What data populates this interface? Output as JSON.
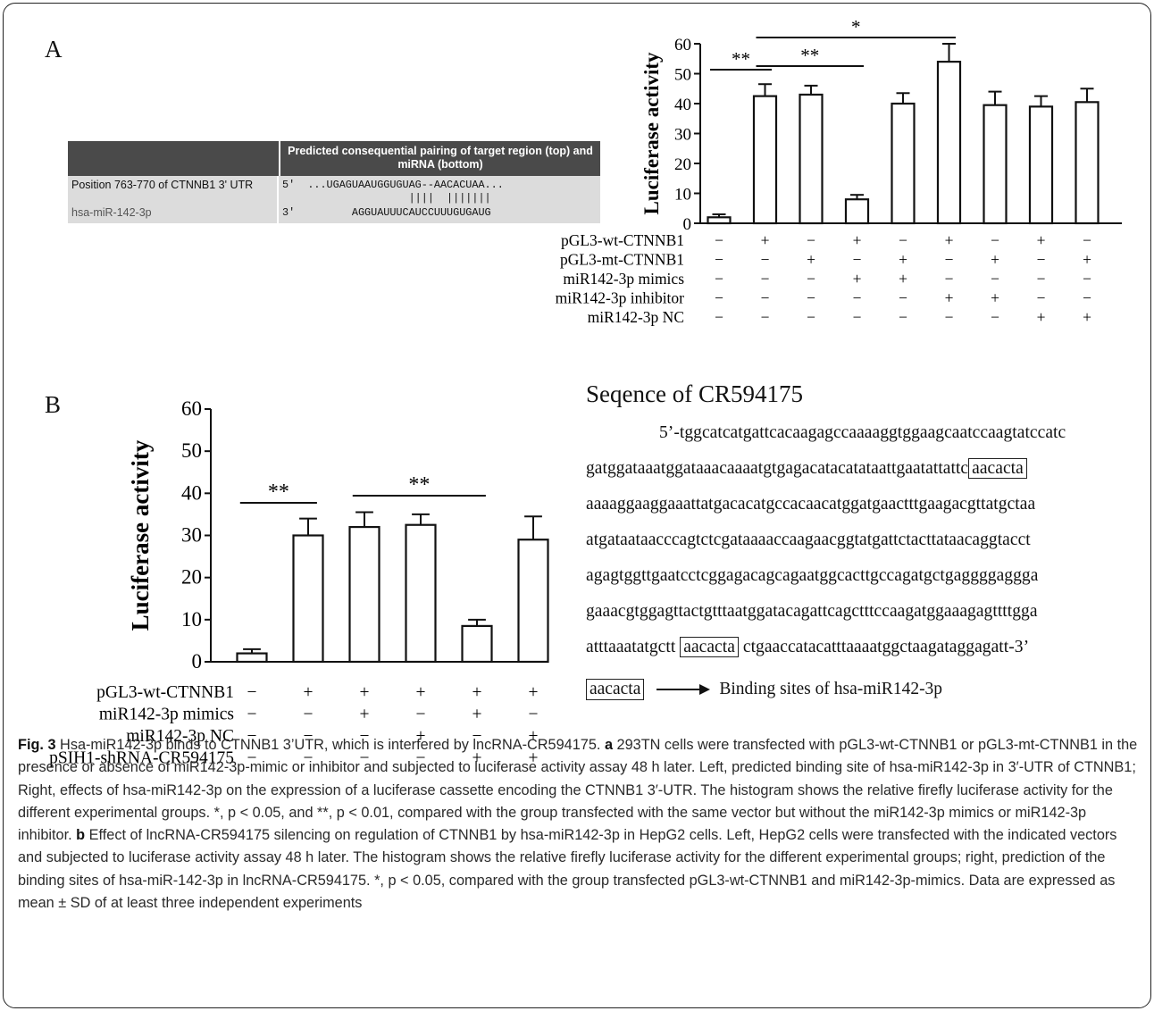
{
  "panelA": {
    "letter": "A",
    "table": {
      "header_col2": "Predicted consequential pairing of target region (top) and miRNA (bottom)",
      "rows": [
        {
          "label": "Position 763-770 of CTNNB1 3' UTR",
          "seq": "5'  ...UGAGUAAUGGUGUAG--AACACUAA..."
        },
        {
          "label": "",
          "seq": "                    ||||  |||||||"
        },
        {
          "label": "hsa-miR-142-3p",
          "seq": "3'         AGGUAUUUCAUCCUUUGUGAUG"
        }
      ]
    }
  },
  "panelB": {
    "letter": "B",
    "sequence_title": "Seqence of CR594175",
    "sequence_lines": [
      {
        "pre": "5’-tggcatcatgattcacaagagccaaaaggtggaagcaatccaagtatccatc",
        "box": "",
        "post": ""
      },
      {
        "pre": "gatggataaatggataaacaaaatgtgagacatacatataattgaatattattc",
        "box": "aacacta",
        "post": ""
      },
      {
        "pre": "aaaaggaaggaaattatgacacatgccacaacatggatgaactttgaagacgttatgctaa",
        "box": "",
        "post": ""
      },
      {
        "pre": "atgataataacccagtctcgataaaaccaagaacggtatgattctacttataacaggtacct",
        "box": "",
        "post": ""
      },
      {
        "pre": "agagtggttgaatcctcggagacagcagaatggcacttgccagatgctgaggggaggga",
        "box": "",
        "post": ""
      },
      {
        "pre": "gaaacgtggagttactgtttaatggatacagattcagctttccaagatggaaagagttttgga",
        "box": "",
        "post": ""
      },
      {
        "pre": "atttaaatatgctt ",
        "box": "aacacta",
        "post": " ctgaaccatacatttaaaatggctaagataggagatt-3’"
      }
    ],
    "legend_box": "aacacta",
    "legend_text": "Binding sites  of  hsa-miR142-3p"
  },
  "chart_data": [
    {
      "type": "bar",
      "ylabel": "Luciferase activity",
      "ylim": [
        0,
        60
      ],
      "yticks": [
        0,
        10,
        20,
        30,
        40,
        50,
        60
      ],
      "values": [
        2,
        42.5,
        43,
        8,
        40,
        54,
        39.5,
        39,
        40.5
      ],
      "errors": [
        1,
        4,
        3,
        1.5,
        3.5,
        6,
        4.5,
        3.5,
        4.5
      ],
      "conditions": [
        {
          "label": "pGL3-wt-CTNNB1",
          "signs": [
            "−",
            "+",
            "−",
            "+",
            "−",
            "+",
            "−",
            "+",
            "−"
          ]
        },
        {
          "label": "pGL3-mt-CTNNB1",
          "signs": [
            "−",
            "−",
            "+",
            "−",
            "+",
            "−",
            "+",
            "−",
            "+"
          ]
        },
        {
          "label": "miR142-3p mimics",
          "signs": [
            "−",
            "−",
            "−",
            "+",
            "+",
            "−",
            "−",
            "−",
            "−"
          ]
        },
        {
          "label": "miR142-3p inhibitor",
          "signs": [
            "−",
            "−",
            "−",
            "−",
            "−",
            "+",
            "+",
            "−",
            "−"
          ]
        },
        {
          "label": "miR142-3p NC",
          "signs": [
            "−",
            "−",
            "−",
            "−",
            "−",
            "−",
            "−",
            "+",
            "+"
          ]
        }
      ],
      "significance": [
        {
          "from": 0,
          "to": 1,
          "label": "**"
        },
        {
          "from": 1,
          "to": 3,
          "label": "**"
        },
        {
          "from": 1,
          "to": 5,
          "label": "*"
        }
      ]
    },
    {
      "type": "bar",
      "ylabel": "Luciferase activity",
      "ylim": [
        0,
        60
      ],
      "yticks": [
        0,
        10,
        20,
        30,
        40,
        50,
        60
      ],
      "values": [
        2,
        30,
        32,
        32.5,
        8.5,
        29
      ],
      "errors": [
        1,
        4,
        3.5,
        2.5,
        1.5,
        5.5
      ],
      "conditions": [
        {
          "label": "pGL3-wt-CTNNB1",
          "signs": [
            "−",
            "+",
            "+",
            "+",
            "+",
            "+"
          ]
        },
        {
          "label": "miR142-3p mimics",
          "signs": [
            "−",
            "−",
            "+",
            "−",
            "+",
            "−"
          ]
        },
        {
          "label": "miR142-3p NC",
          "signs": [
            "−",
            "−",
            "−",
            "+",
            "−",
            "+"
          ]
        },
        {
          "label": "pSIH1-shRNA-CR594175",
          "signs": [
            "−",
            "−",
            "−",
            "−",
            "+",
            "+"
          ]
        }
      ],
      "significance": [
        {
          "from": 0,
          "to": 1,
          "label": "**"
        },
        {
          "from": 2,
          "to": 4,
          "label": "**"
        }
      ]
    }
  ],
  "caption": {
    "fig": "Fig. 3",
    "title": " Hsa-miR142-3p binds to CTNNB1 3’UTR, which is interfered by lncRNA-CR594175. ",
    "a": "a",
    "text_a": " 293TN cells were transfected with pGL3-wt-CTNNB1 or pGL3-mt-CTNNB1 in the presence or absence of miR142-3p-mimic or inhibitor and subjected to luciferase activity assay 48 h later. Left, predicted binding site of hsa-miR142-3p in 3′-UTR of CTNNB1; Right, effects of hsa-miR142-3p on the expression of a luciferase cassette encoding the CTNNB1 3′-UTR. The histogram shows the relative firefly luciferase activity for the different experimental groups. *, p < 0.05, and **, p < 0.01, compared with the group transfected with the same vector but without the miR142-3p mimics or miR142-3p inhibitor. ",
    "b": "b",
    "text_b": " Effect of lncRNA-CR594175 silencing on regulation of CTNNB1 by hsa-miR142-3p in HepG2 cells. Left, HepG2 cells were transfected with the indicated vectors and subjected to luciferase activity assay 48 h later. The histogram shows the relative firefly luciferase activity for the different experimental groups; right, prediction of the binding sites of hsa-miR-142-3p in lncRNA-CR594175. *, p < 0.05, compared with the group transfected pGL3-wt-CTNNB1 and miR142-3p-mimics. Data are expressed as mean ± SD of at least three independent experiments"
  }
}
